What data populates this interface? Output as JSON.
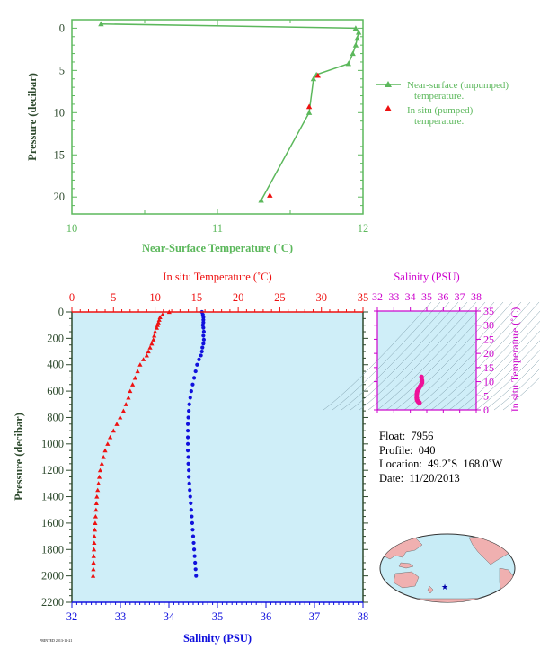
{
  "colors": {
    "green": "#5cb85c",
    "axis_dark": "#2e4a2e",
    "red": "#ee1111",
    "blue": "#1111dd",
    "magenta": "#cc00cc",
    "panel_bg": "#cfeef8",
    "land": "#f0b0b0",
    "ocean": "#c8ecf6"
  },
  "info": {
    "float": "Float:  7956",
    "profile": "Profile:  040",
    "location": "Location:  49.2˚S  168.0˚W",
    "date": "Date:  11/20/2013"
  },
  "footer_text": "PRINTED 2013-11-21",
  "chart_data": [
    {
      "type": "line",
      "id": "near-surface",
      "xlabel": "Near-Surface Temperature (˚C)",
      "ylabel": "Pressure (decibar)",
      "xlim": [
        10,
        12
      ],
      "ylim": [
        22,
        -1
      ],
      "xticks": [
        10,
        11,
        12
      ],
      "xtick_labels_extra": [
        10,
        11,
        12
      ],
      "xtick_label_values": [
        "10",
        "10",
        "11",
        "11",
        "12",
        "12"
      ],
      "yticks": [
        0,
        5,
        10,
        15,
        20
      ],
      "legend": [
        {
          "label_line1": "Near-surface (unpumped)",
          "label_line2": "temperature.",
          "marker": "triangle",
          "color": "green"
        },
        {
          "label_line1": "In situ (pumped)",
          "label_line2": "temperature.",
          "marker": "triangle",
          "color": "red"
        }
      ],
      "series": [
        {
          "name": "Near-surface (unpumped) temperature.",
          "x": [
            10.2,
            11.95,
            11.97,
            11.96,
            11.95,
            11.93,
            11.9,
            11.68,
            11.66,
            11.63,
            11.3
          ],
          "y": [
            -0.5,
            0.0,
            0.5,
            1.2,
            2.0,
            3.0,
            4.2,
            5.5,
            6.0,
            10.0,
            20.4
          ]
        },
        {
          "name": "In situ (pumped) temperature.",
          "x": [
            11.69,
            11.63,
            11.36
          ],
          "y": [
            5.6,
            9.3,
            19.8
          ]
        }
      ]
    },
    {
      "type": "scatter",
      "id": "profile",
      "ylabel": "Pressure (decibar)",
      "ylim": [
        2200,
        0
      ],
      "yticks": [
        0,
        200,
        400,
        600,
        800,
        1000,
        1200,
        1400,
        1600,
        1800,
        2000,
        2200
      ],
      "x_top_label": "In situ Temperature (˚C)",
      "x_top_lim": [
        0,
        35
      ],
      "x_top_ticks": [
        0,
        5,
        10,
        15,
        20,
        25,
        30,
        35
      ],
      "x_bottom_label": "Salinity (PSU)",
      "x_bottom_lim": [
        32,
        38
      ],
      "x_bottom_ticks": [
        32,
        33,
        34,
        35,
        36,
        37,
        38
      ],
      "series": [
        {
          "name": "In situ Temperature",
          "pressure": [
            0,
            20,
            40,
            60,
            80,
            100,
            120,
            150,
            180,
            210,
            240,
            270,
            300,
            330,
            360,
            400,
            450,
            500,
            550,
            600,
            650,
            700,
            750,
            800,
            850,
            900,
            950,
            1000,
            1050,
            1100,
            1150,
            1200,
            1250,
            1300,
            1350,
            1400,
            1450,
            1500,
            1550,
            1600,
            1650,
            1700,
            1750,
            1800,
            1850,
            1900,
            1950,
            2000
          ],
          "values": [
            11.7,
            10.9,
            10.6,
            10.5,
            10.4,
            10.3,
            10.2,
            10.0,
            9.9,
            9.8,
            9.6,
            9.4,
            9.2,
            9.0,
            8.6,
            8.2,
            7.9,
            7.6,
            7.3,
            7.0,
            6.8,
            6.5,
            6.2,
            5.8,
            5.4,
            5.0,
            4.6,
            4.3,
            4.0,
            3.8,
            3.6,
            3.4,
            3.3,
            3.2,
            3.1,
            3.0,
            2.95,
            2.9,
            2.85,
            2.8,
            2.75,
            2.7,
            2.68,
            2.65,
            2.62,
            2.6,
            2.58,
            2.55
          ]
        },
        {
          "name": "Salinity",
          "pressure": [
            0,
            20,
            40,
            60,
            80,
            100,
            120,
            150,
            180,
            210,
            240,
            270,
            300,
            330,
            360,
            400,
            450,
            500,
            550,
            600,
            650,
            700,
            750,
            800,
            850,
            900,
            950,
            1000,
            1050,
            1100,
            1150,
            1200,
            1250,
            1300,
            1350,
            1400,
            1450,
            1500,
            1550,
            1600,
            1650,
            1700,
            1750,
            1800,
            1850,
            1900,
            1950,
            2000
          ],
          "values": [
            34.68,
            34.7,
            34.71,
            34.71,
            34.71,
            34.7,
            34.71,
            34.72,
            34.71,
            34.72,
            34.71,
            34.69,
            34.68,
            34.66,
            34.62,
            34.58,
            34.55,
            34.52,
            34.49,
            34.46,
            34.44,
            34.42,
            34.41,
            34.4,
            34.39,
            34.39,
            34.39,
            34.39,
            34.39,
            34.4,
            34.4,
            34.41,
            34.41,
            34.42,
            34.43,
            34.44,
            34.45,
            34.46,
            34.47,
            34.48,
            34.49,
            34.5,
            34.51,
            34.52,
            34.53,
            34.54,
            34.55,
            34.56
          ]
        }
      ]
    },
    {
      "type": "scatter",
      "id": "ts-diagram",
      "xlabel": "Salinity (PSU)",
      "ylabel": "In situ Temperature (˚C)",
      "xlim": [
        32,
        38
      ],
      "xticks": [
        32,
        33,
        34,
        35,
        36,
        37,
        38
      ],
      "ylim": [
        0,
        35
      ],
      "yticks": [
        0,
        5,
        10,
        15,
        20,
        25,
        30,
        35
      ],
      "series": [
        {
          "name": "T-S",
          "x": [
            34.68,
            34.7,
            34.71,
            34.71,
            34.66,
            34.58,
            34.52,
            34.46,
            34.42,
            34.4,
            34.39,
            34.39,
            34.4,
            34.42,
            34.45,
            34.48,
            34.51,
            34.54,
            34.56
          ],
          "y": [
            11.7,
            10.6,
            10.2,
            9.6,
            9.0,
            8.2,
            7.6,
            7.0,
            6.5,
            5.8,
            5.0,
            4.3,
            3.8,
            3.4,
            3.1,
            2.9,
            2.75,
            2.65,
            2.55
          ]
        }
      ]
    }
  ],
  "map": {
    "float_lat": -49.2,
    "float_lon": -168.0,
    "center_lon": -160
  }
}
